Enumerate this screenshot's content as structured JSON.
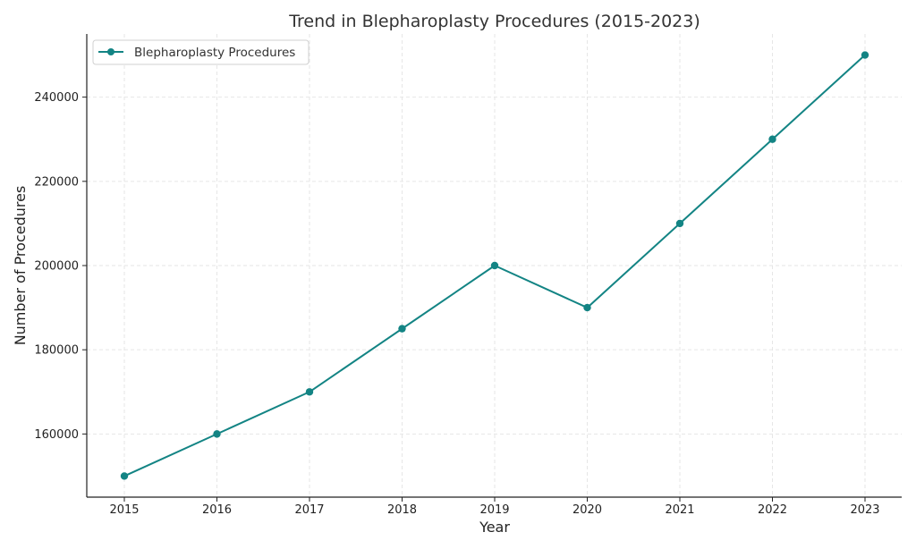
{
  "chart_data": {
    "type": "line",
    "title": "Trend in Blepharoplasty Procedures (2015-2023)",
    "xlabel": "Year",
    "ylabel": "Number of Procedures",
    "categories": [
      "2015",
      "2016",
      "2017",
      "2018",
      "2019",
      "2020",
      "2021",
      "2022",
      "2023"
    ],
    "series": [
      {
        "name": "Blepharoplasty Procedures",
        "values": [
          150000,
          160000,
          170000,
          185000,
          200000,
          190000,
          210000,
          230000,
          250000
        ],
        "color": "#138484"
      }
    ],
    "yticks": [
      160000,
      180000,
      200000,
      220000,
      240000
    ],
    "ylim": [
      145000,
      255000
    ],
    "grid": true,
    "legend_position": "top-left"
  }
}
